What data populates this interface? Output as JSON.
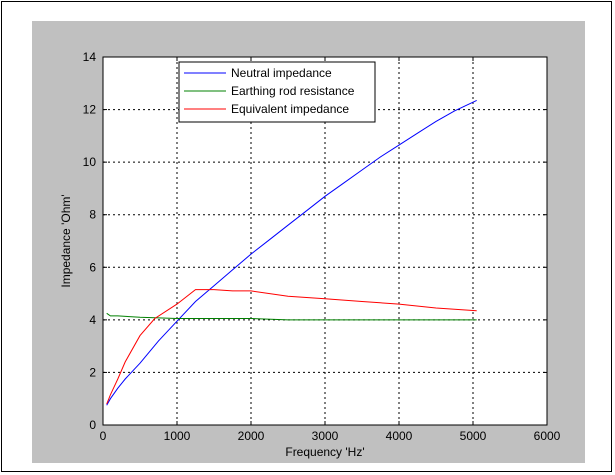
{
  "chart_data": {
    "type": "line",
    "title": "",
    "xlabel": "Frequency 'Hz'",
    "ylabel": "Impedance 'Ohm'",
    "xlim": [
      0,
      6000
    ],
    "ylim": [
      0,
      14
    ],
    "xticks": [
      0,
      1000,
      2000,
      3000,
      4000,
      5000,
      6000
    ],
    "yticks": [
      0,
      2,
      4,
      6,
      8,
      10,
      12,
      14
    ],
    "grid": true,
    "legend_position": "top-center",
    "series": [
      {
        "name": "Neutral impedance",
        "color": "#0000ff",
        "x": [
          50,
          100,
          200,
          300,
          500,
          750,
          1000,
          1250,
          1500,
          1750,
          2000,
          2250,
          2500,
          2750,
          3000,
          3250,
          3500,
          3750,
          4000,
          4250,
          4500,
          4750,
          5050
        ],
        "y": [
          0.75,
          1.0,
          1.4,
          1.75,
          2.35,
          3.2,
          3.95,
          4.7,
          5.3,
          5.9,
          6.5,
          7.05,
          7.6,
          8.15,
          8.7,
          9.2,
          9.7,
          10.2,
          10.65,
          11.1,
          11.55,
          11.95,
          12.35
        ]
      },
      {
        "name": "Earthing rod resistance",
        "color": "#008000",
        "x": [
          50,
          100,
          200,
          500,
          1000,
          1500,
          2000,
          2500,
          3000,
          3500,
          4000,
          4500,
          5050
        ],
        "y": [
          4.25,
          4.15,
          4.15,
          4.1,
          4.05,
          4.05,
          4.05,
          4.0,
          4.0,
          4.0,
          4.0,
          4.0,
          4.0
        ]
      },
      {
        "name": "Equivalent impedance",
        "color": "#ff0000",
        "x": [
          50,
          100,
          200,
          300,
          500,
          700,
          1000,
          1250,
          1500,
          1750,
          2000,
          2500,
          3000,
          3500,
          4000,
          4500,
          5050
        ],
        "y": [
          0.8,
          1.15,
          1.75,
          2.4,
          3.4,
          4.05,
          4.6,
          5.15,
          5.15,
          5.1,
          5.1,
          4.9,
          4.8,
          4.7,
          4.6,
          4.45,
          4.35
        ]
      }
    ]
  }
}
